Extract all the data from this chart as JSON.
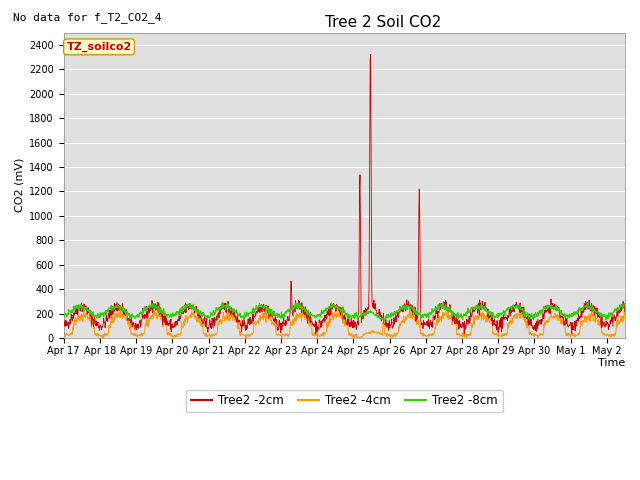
{
  "title": "Tree 2 Soil CO2",
  "subtitle": "No data for f_T2_CO2_4",
  "ylabel": "CO2 (mV)",
  "xlabel": "Time",
  "annotation": "TZ_soilco2",
  "ylim": [
    0,
    2500
  ],
  "yticks": [
    0,
    200,
    400,
    600,
    800,
    1000,
    1200,
    1400,
    1600,
    1800,
    2000,
    2200,
    2400
  ],
  "xtick_labels": [
    "Apr 17",
    "Apr 18",
    "Apr 19",
    "Apr 20",
    "Apr 21",
    "Apr 22",
    "Apr 23",
    "Apr 24",
    "Apr 25",
    "Apr 26",
    "Apr 27",
    "Apr 28",
    "Apr 29",
    "Apr 30",
    "May 1",
    "May 2"
  ],
  "plot_bg_color": "#e0e0e0",
  "fig_bg_color": "#ffffff",
  "grid_color": "#ffffff",
  "line_colors": {
    "2cm": "#cc0000",
    "4cm": "#ff9900",
    "8cm": "#33cc00"
  },
  "legend_labels": [
    "Tree2 -2cm",
    "Tree2 -4cm",
    "Tree2 -8cm"
  ],
  "title_fontsize": 11,
  "tick_fontsize": 7,
  "label_fontsize": 8,
  "subtitle_fontsize": 8,
  "annot_fontsize": 8
}
